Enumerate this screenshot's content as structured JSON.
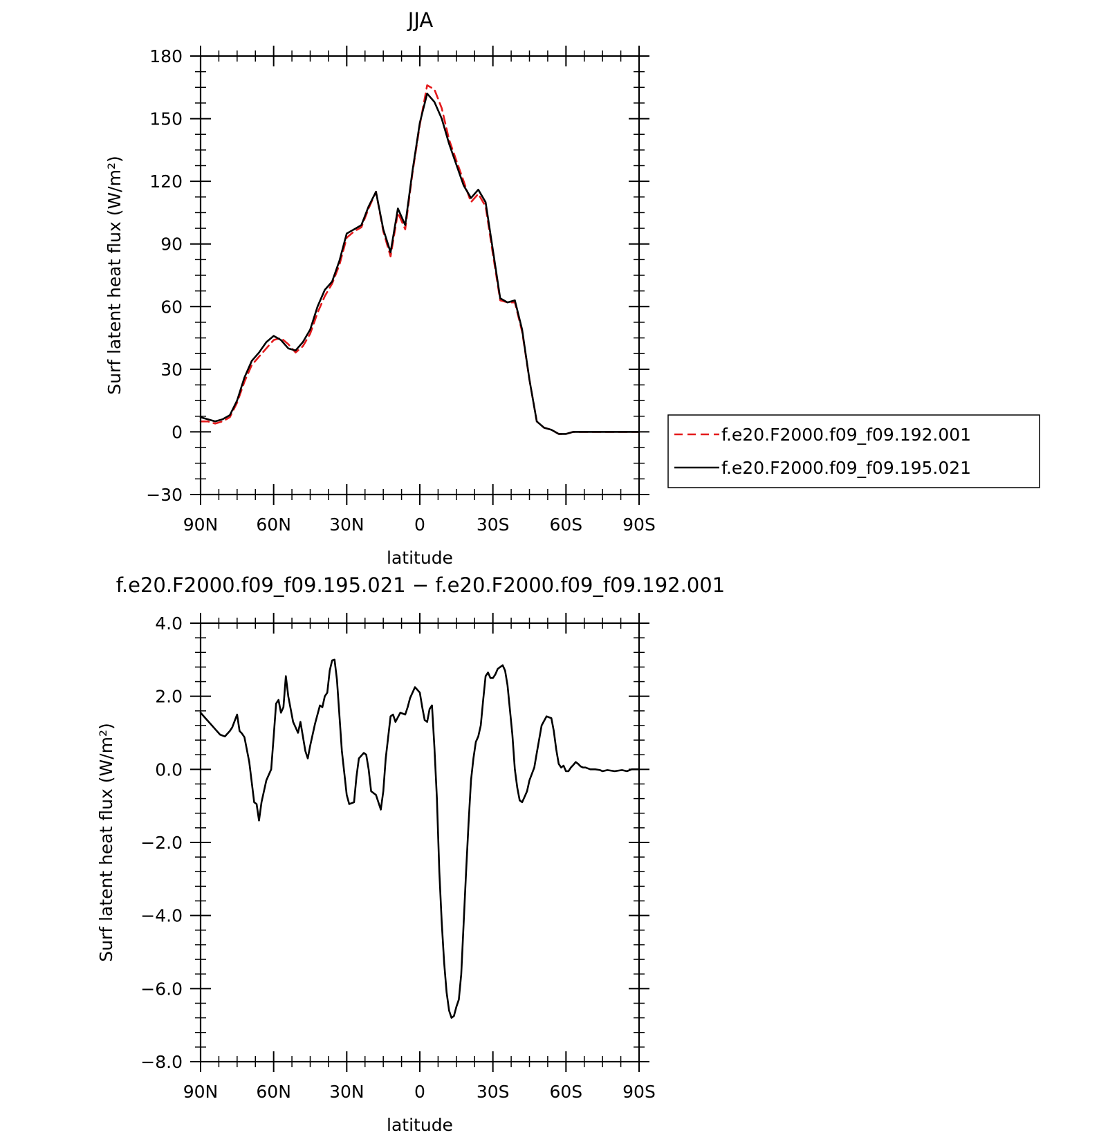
{
  "chart_data": [
    {
      "type": "line",
      "title": "JJA",
      "xlabel": "latitude",
      "ylabel": "Surf latent heat flux (W/m²)",
      "xlim": [
        90,
        -90
      ],
      "ylim": [
        -30,
        180
      ],
      "x_ticks": [
        90,
        60,
        30,
        0,
        -30,
        -60,
        -90
      ],
      "x_tick_labels": [
        "90N",
        "60N",
        "30N",
        "0",
        "30S",
        "60S",
        "90S"
      ],
      "y_ticks": [
        -30,
        0,
        30,
        60,
        90,
        120,
        150,
        180
      ],
      "y_tick_labels": [
        "−30",
        "0",
        "30",
        "60",
        "90",
        "120",
        "150",
        "180"
      ],
      "legend": "right",
      "series": [
        {
          "name": "f.e20.F2000.f09_f09.192.001",
          "color": "#e41a1c",
          "dash": "dashed",
          "x": [
            90,
            87,
            84,
            81,
            78,
            75,
            72,
            69,
            66,
            63,
            60,
            57,
            54,
            51,
            48,
            45,
            42,
            39,
            36,
            33,
            30,
            27,
            24,
            21,
            18,
            15,
            12,
            9,
            6,
            3,
            0,
            -3,
            -6,
            -9,
            -12,
            -15,
            -18,
            -21,
            -24,
            -27,
            -30,
            -33,
            -36,
            -39,
            -42,
            -45,
            -48,
            -51,
            -54,
            -57,
            -60,
            -63,
            -66,
            -69,
            -72,
            -75,
            -78,
            -81,
            -84,
            -87,
            -90
          ],
          "y": [
            5,
            5,
            4,
            5,
            7,
            14,
            24,
            32,
            36,
            40,
            44,
            45,
            42,
            38,
            41,
            47,
            57,
            65,
            71,
            80,
            93,
            96,
            98,
            107,
            115,
            96,
            84,
            105,
            97,
            124,
            147,
            166,
            164,
            155,
            140,
            130,
            120,
            110,
            114,
            108,
            85,
            63,
            62,
            62,
            48,
            25,
            5,
            2,
            1,
            -1,
            -1,
            0,
            0,
            0,
            0,
            0,
            0,
            0,
            0,
            0,
            0
          ]
        },
        {
          "name": "f.e20.F2000.f09_f09.195.021",
          "color": "#000000",
          "dash": "solid",
          "x": [
            90,
            87,
            84,
            81,
            78,
            75,
            72,
            69,
            66,
            63,
            60,
            57,
            54,
            51,
            48,
            45,
            42,
            39,
            36,
            33,
            30,
            27,
            24,
            21,
            18,
            15,
            12,
            9,
            6,
            3,
            0,
            -3,
            -6,
            -9,
            -12,
            -15,
            -18,
            -21,
            -24,
            -27,
            -30,
            -33,
            -36,
            -39,
            -42,
            -45,
            -48,
            -51,
            -54,
            -57,
            -60,
            -63,
            -66,
            -69,
            -72,
            -75,
            -78,
            -81,
            -84,
            -87,
            -90
          ],
          "y": [
            7,
            6,
            5,
            6,
            8,
            15,
            26,
            34,
            38,
            43,
            46,
            44,
            40,
            39,
            43,
            49,
            60,
            68,
            72,
            82,
            95,
            97,
            99,
            108,
            115,
            97,
            86,
            107,
            99,
            125,
            148,
            162,
            158,
            150,
            138,
            128,
            118,
            112,
            116,
            110,
            87,
            64,
            62,
            63,
            49,
            25,
            5,
            2,
            1,
            -1,
            -1,
            0,
            0,
            0,
            0,
            0,
            0,
            0,
            0,
            0,
            0
          ]
        }
      ]
    },
    {
      "type": "line",
      "title": "f.e20.F2000.f09_f09.195.021 − f.e20.F2000.f09_f09.192.001",
      "xlabel": "latitude",
      "ylabel": "Surf latent heat flux (W/m²)",
      "xlim": [
        90,
        -90
      ],
      "ylim": [
        -8,
        4
      ],
      "x_ticks": [
        90,
        60,
        30,
        0,
        -30,
        -60,
        -90
      ],
      "x_tick_labels": [
        "90N",
        "60N",
        "30N",
        "0",
        "30S",
        "60S",
        "90S"
      ],
      "y_ticks": [
        -8,
        -6,
        -4,
        -2,
        0,
        2,
        4
      ],
      "y_tick_labels": [
        "−8.0",
        "−6.0",
        "−4.0",
        "−2.0",
        "0.0",
        "2.0",
        "4.0"
      ],
      "series": [
        {
          "color": "#000000",
          "dash": "solid",
          "x": [
            90,
            88,
            86,
            84,
            82,
            80,
            78,
            77,
            75,
            74,
            73,
            72,
            70,
            68,
            67,
            66,
            65,
            63,
            61,
            60,
            59,
            58,
            57,
            56,
            55,
            54,
            52,
            50,
            49,
            47,
            46,
            45,
            43,
            41,
            40,
            39,
            38,
            37,
            36,
            35,
            34,
            32,
            30,
            29,
            27,
            26,
            25,
            23,
            22,
            21,
            20,
            18,
            16,
            15,
            14,
            12,
            11,
            10,
            8,
            6,
            5,
            4,
            2,
            0,
            -1,
            -2,
            -3,
            -4,
            -5,
            -6,
            -7,
            -8,
            -9,
            -10,
            -11,
            -12,
            -13,
            -14,
            -15,
            -16,
            -17,
            -18,
            -19,
            -20,
            -21,
            -22,
            -23,
            -24,
            -25,
            -26,
            -27,
            -28,
            -29,
            -30,
            -31,
            -32,
            -33,
            -34,
            -35,
            -36,
            -38,
            -39,
            -40,
            -41,
            -42,
            -43,
            -44,
            -45,
            -47,
            -48,
            -50,
            -52,
            -54,
            -55,
            -56,
            -57,
            -58,
            -59,
            -60,
            -61,
            -62,
            -63,
            -64,
            -65,
            -66,
            -67,
            -68,
            -70,
            -72,
            -74,
            -75,
            -77,
            -80,
            -83,
            -85,
            -87,
            -90
          ],
          "y": [
            1.55,
            1.4,
            1.25,
            1.1,
            0.95,
            0.9,
            1.05,
            1.15,
            1.5,
            1.05,
            0.98,
            0.88,
            0.2,
            -0.9,
            -0.95,
            -1.4,
            -0.9,
            -0.3,
            0.0,
            0.9,
            1.8,
            1.9,
            1.55,
            1.7,
            2.55,
            2.0,
            1.3,
            1.0,
            1.3,
            0.5,
            0.3,
            0.65,
            1.25,
            1.75,
            1.7,
            2.0,
            2.1,
            2.7,
            2.98,
            3.0,
            2.45,
            0.5,
            -0.7,
            -0.95,
            -0.9,
            -0.2,
            0.3,
            0.45,
            0.4,
            0.0,
            -0.6,
            -0.7,
            -1.1,
            -0.6,
            0.3,
            1.45,
            1.5,
            1.3,
            1.55,
            1.5,
            1.7,
            1.95,
            2.25,
            2.1,
            1.7,
            1.35,
            1.3,
            1.65,
            1.75,
            0.6,
            -0.8,
            -2.8,
            -4.2,
            -5.3,
            -6.1,
            -6.6,
            -6.8,
            -6.75,
            -6.5,
            -6.3,
            -5.6,
            -4.2,
            -2.8,
            -1.5,
            -0.3,
            0.3,
            0.75,
            0.9,
            1.2,
            1.9,
            2.55,
            2.65,
            2.5,
            2.5,
            2.6,
            2.75,
            2.8,
            2.85,
            2.7,
            2.3,
            0.95,
            0.0,
            -0.5,
            -0.85,
            -0.9,
            -0.75,
            -0.6,
            -0.3,
            0.05,
            0.45,
            1.2,
            1.45,
            1.4,
            1.05,
            0.55,
            0.15,
            0.05,
            0.1,
            -0.05,
            -0.05,
            0.05,
            0.12,
            0.2,
            0.15,
            0.08,
            0.05,
            0.05,
            0.0,
            0.0,
            -0.02,
            -0.05,
            -0.02,
            -0.05,
            -0.02,
            -0.05,
            0.0,
            0.0
          ]
        }
      ]
    }
  ]
}
